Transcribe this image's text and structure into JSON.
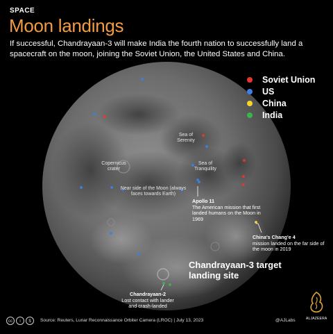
{
  "header": {
    "eyebrow": "SPACE",
    "title": "Moon landings",
    "subtitle": "If successful, Chandrayaan-3 will make India the fourth nation to successfully land a spacecraft on the moon, joining the Soviet Union, the United States and China."
  },
  "legend": [
    {
      "label": "Soviet Union",
      "color": "#e8362b"
    },
    {
      "label": "US",
      "color": "#3e7fe0"
    },
    {
      "label": "China",
      "color": "#f5d629"
    },
    {
      "label": "India",
      "color": "#3bb54a"
    }
  ],
  "map_labels": {
    "sea_of_serenity": "Sea of Serenity",
    "sea_of_tranquility": "Sea of Tranquility",
    "copernicus": "Copernicus crater",
    "near_side": "Near side of the Moon (always faces towards Earth)"
  },
  "annotations": {
    "apollo_title": "Apollo 11",
    "apollo_text": "The American mission that first landed humans on the Moon in 1969",
    "change_title": "China's Chang'e 4",
    "change_text": "mission landed on the far side of the moon in 2019",
    "target_label": "Chandrayaan-3 target landing site",
    "ch2_title": "Chandrayaan-2",
    "ch2_text": "Lost contact with lander and crash-landed"
  },
  "footer": {
    "source": "Source: Reuters, Lunar Reconnaissance Orbiter Camera (LROC) | July 13, 2023",
    "handle": "@AJLabs",
    "logo_text": "ALJAZEERA",
    "license_icons": [
      "cc-icon",
      "by-icon",
      "nc-icon"
    ]
  }
}
